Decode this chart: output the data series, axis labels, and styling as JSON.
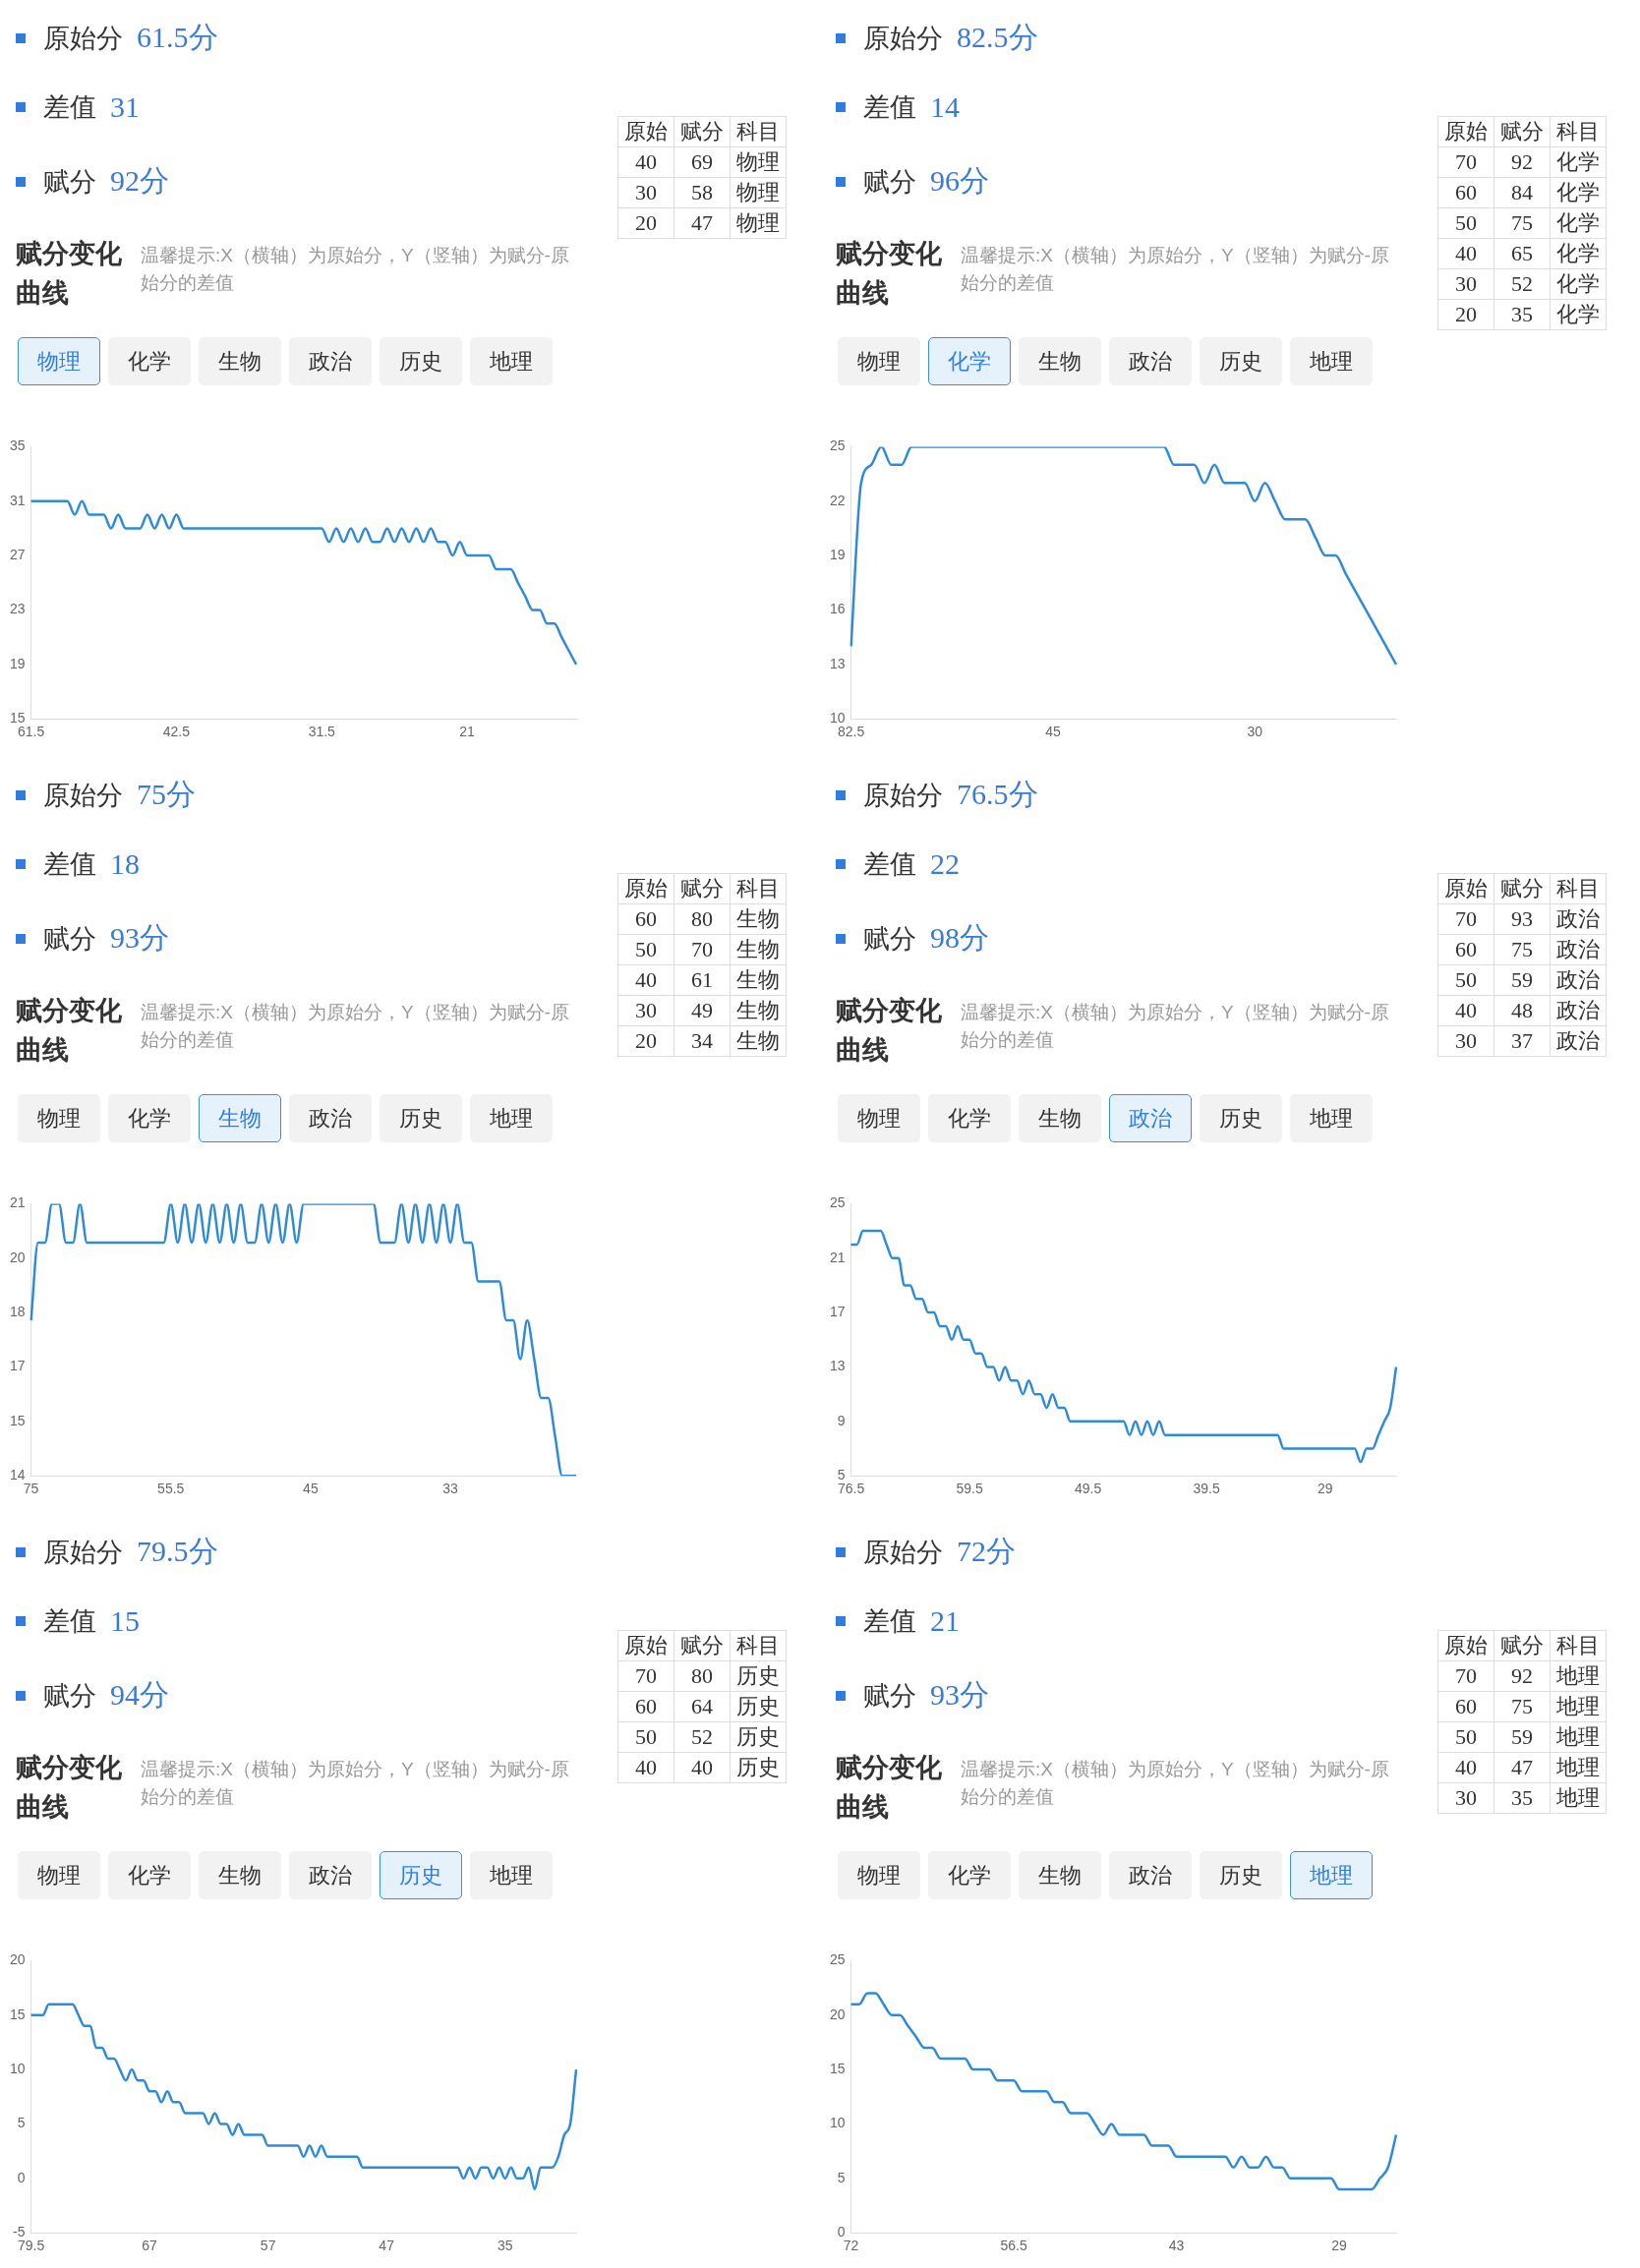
{
  "chart_data": [
    {
      "type": "line",
      "color": "#2f8ad8",
      "ylim": [
        15,
        35
      ],
      "yticks": [
        15,
        19,
        23,
        27,
        31,
        35
      ],
      "categories": [
        "61.5",
        null,
        null,
        null,
        null,
        null,
        null,
        null,
        null,
        null,
        null,
        null,
        null,
        null,
        null,
        null,
        null,
        null,
        null,
        null,
        "42.5",
        null,
        null,
        null,
        null,
        null,
        null,
        null,
        null,
        null,
        null,
        null,
        null,
        null,
        null,
        null,
        null,
        null,
        null,
        null,
        "31.5",
        null,
        null,
        null,
        null,
        null,
        null,
        null,
        null,
        null,
        null,
        null,
        null,
        null,
        null,
        null,
        null,
        null,
        null,
        null,
        "21",
        null,
        null,
        null,
        null,
        null,
        null,
        null,
        null,
        null,
        null,
        null,
        null,
        null,
        null,
        null
      ],
      "values": [
        31,
        31,
        31,
        31,
        31,
        31,
        30,
        31,
        30,
        30,
        30,
        29,
        30,
        29,
        29,
        29,
        30,
        29,
        30,
        29,
        30,
        29,
        29,
        29,
        29,
        29,
        29,
        29,
        29,
        29,
        29,
        29,
        29,
        29,
        29,
        29,
        29,
        29,
        29,
        29,
        29,
        28,
        29,
        28,
        29,
        28,
        29,
        28,
        28,
        29,
        28,
        29,
        28,
        29,
        28,
        29,
        28,
        28,
        27,
        28,
        27,
        27,
        27,
        27,
        26,
        26,
        26,
        25,
        24,
        23,
        23,
        22,
        22,
        21,
        20,
        19
      ],
      "annotations": [
        "原始分",
        "61.5分",
        "差值",
        "31",
        "赋分",
        "92分",
        "赋分变化曲线",
        "温馨提示:X（横轴）为原始分，Y（竖轴）为赋分-原始分的差值",
        "物理",
        "化学",
        "生物",
        "政治",
        "历史",
        "地理",
        "原始",
        "赋分",
        "科目",
        "40",
        "69",
        "物理",
        "30",
        "58",
        "物理",
        "20",
        "47",
        "物理"
      ]
    },
    {
      "type": "line",
      "color": "#2f8ad8",
      "ylim": [
        10,
        25
      ],
      "yticks": [
        10,
        13,
        16,
        19,
        22,
        25
      ],
      "categories": [
        "82.5",
        null,
        null,
        null,
        null,
        null,
        null,
        null,
        null,
        null,
        null,
        null,
        null,
        null,
        null,
        null,
        null,
        null,
        null,
        null,
        "45",
        null,
        null,
        null,
        null,
        null,
        null,
        null,
        null,
        null,
        null,
        null,
        null,
        null,
        null,
        null,
        null,
        null,
        null,
        null,
        "30",
        null,
        null,
        null,
        null,
        null,
        null,
        null,
        null,
        null,
        null,
        null,
        null,
        null,
        null
      ],
      "values": [
        14,
        23,
        24,
        25,
        24,
        24,
        25,
        25,
        25,
        25,
        25,
        25,
        25,
        25,
        25,
        25,
        25,
        25,
        25,
        25,
        25,
        25,
        25,
        25,
        25,
        25,
        25,
        25,
        25,
        25,
        25,
        25,
        24,
        24,
        24,
        23,
        24,
        23,
        23,
        23,
        22,
        23,
        22,
        21,
        21,
        21,
        20,
        19,
        19,
        18,
        17,
        16,
        15,
        14,
        13
      ],
      "annotations": [
        "原始分",
        "82.5分",
        "差值",
        "14",
        "赋分",
        "96分",
        "赋分变化曲线",
        "温馨提示:X（横轴）为原始分，Y（竖轴）为赋分-原始分的差值",
        "物理",
        "化学",
        "生物",
        "政治",
        "历史",
        "地理",
        "原始",
        "赋分",
        "科目",
        "70",
        "92",
        "化学",
        "60",
        "84",
        "化学",
        "50",
        "75",
        "化学",
        "40",
        "65",
        "化学",
        "30",
        "52",
        "化学",
        "20",
        "35",
        "化学"
      ]
    },
    {
      "type": "line",
      "color": "#2f8ad8",
      "ylim": [
        14,
        21
      ],
      "yticks": [
        14,
        {
          "value": 15.4,
          "label": "15"
        },
        {
          "value": 16.8,
          "label": "17"
        },
        {
          "value": 18.2,
          "label": "18"
        },
        {
          "value": 19.6,
          "label": "20"
        },
        21
      ],
      "categories": [
        "75",
        null,
        null,
        null,
        null,
        null,
        null,
        null,
        null,
        null,
        null,
        null,
        null,
        null,
        null,
        null,
        null,
        null,
        null,
        null,
        "55.5",
        null,
        null,
        null,
        null,
        null,
        null,
        null,
        null,
        null,
        null,
        null,
        null,
        null,
        null,
        null,
        null,
        null,
        null,
        null,
        "45",
        null,
        null,
        null,
        null,
        null,
        null,
        null,
        null,
        null,
        null,
        null,
        null,
        null,
        null,
        null,
        null,
        null,
        null,
        null,
        "33",
        null,
        null,
        null,
        null,
        null,
        null,
        null,
        null,
        null,
        null,
        null,
        null,
        null,
        null,
        null,
        null,
        null,
        null
      ],
      "values": [
        18,
        20,
        20,
        21,
        21,
        20,
        20,
        21,
        20,
        20,
        20,
        20,
        20,
        20,
        20,
        20,
        20,
        20,
        20,
        20,
        21,
        20,
        21,
        20,
        21,
        20,
        21,
        20,
        21,
        20,
        21,
        20,
        20,
        21,
        20,
        21,
        20,
        21,
        20,
        21,
        21,
        21,
        21,
        21,
        21,
        21,
        21,
        21,
        21,
        21,
        20,
        20,
        20,
        21,
        20,
        21,
        20,
        21,
        20,
        21,
        20,
        21,
        20,
        20,
        19,
        19,
        19,
        19,
        18,
        18,
        17,
        18,
        17,
        16,
        16,
        15,
        14,
        14,
        14
      ],
      "annotations": [
        "原始分",
        "75分",
        "差值",
        "18",
        "赋分",
        "93分",
        "赋分变化曲线",
        "温馨提示:X（横轴）为原始分，Y（竖轴）为赋分-原始分的差值",
        "物理",
        "化学",
        "生物",
        "政治",
        "历史",
        "地理",
        "原始",
        "赋分",
        "科目",
        "60",
        "80",
        "生物",
        "50",
        "70",
        "生物",
        "40",
        "61",
        "生物",
        "30",
        "49",
        "生物",
        "20",
        "34",
        "生物"
      ]
    },
    {
      "type": "line",
      "color": "#2f8ad8",
      "ylim": [
        5,
        25
      ],
      "yticks": [
        5,
        9,
        13,
        17,
        21,
        25
      ],
      "categories": [
        "76.5",
        null,
        null,
        null,
        null,
        null,
        null,
        null,
        null,
        null,
        null,
        null,
        null,
        null,
        null,
        null,
        null,
        null,
        null,
        null,
        "59.5",
        null,
        null,
        null,
        null,
        null,
        null,
        null,
        null,
        null,
        null,
        null,
        null,
        null,
        null,
        null,
        null,
        null,
        null,
        null,
        "49.5",
        null,
        null,
        null,
        null,
        null,
        null,
        null,
        null,
        null,
        null,
        null,
        null,
        null,
        null,
        null,
        null,
        null,
        null,
        null,
        "39.5",
        null,
        null,
        null,
        null,
        null,
        null,
        null,
        null,
        null,
        null,
        null,
        null,
        null,
        null,
        null,
        null,
        null,
        null,
        null,
        "29",
        null,
        null,
        null,
        null,
        null,
        null,
        null,
        null,
        null,
        null,
        null,
        null
      ],
      "values": [
        22,
        22,
        23,
        23,
        23,
        23,
        22,
        21,
        21,
        19,
        19,
        18,
        18,
        17,
        17,
        16,
        16,
        15,
        16,
        15,
        15,
        14,
        14,
        13,
        13,
        12,
        13,
        12,
        12,
        11,
        12,
        11,
        11,
        10,
        11,
        10,
        10,
        9,
        9,
        9,
        9,
        9,
        9,
        9,
        9,
        9,
        9,
        8,
        9,
        8,
        9,
        8,
        9,
        8,
        8,
        8,
        8,
        8,
        8,
        8,
        8,
        8,
        8,
        8,
        8,
        8,
        8,
        8,
        8,
        8,
        8,
        8,
        8,
        7,
        7,
        7,
        7,
        7,
        7,
        7,
        7,
        7,
        7,
        7,
        7,
        7,
        6,
        7,
        7,
        8,
        9,
        10,
        13
      ],
      "annotations": [
        "原始分",
        "76.5分",
        "差值",
        "22",
        "赋分",
        "98分",
        "赋分变化曲线",
        "温馨提示:X（横轴）为原始分，Y（竖轴）为赋分-原始分的差值",
        "物理",
        "化学",
        "生物",
        "政治",
        "历史",
        "地理",
        "原始",
        "赋分",
        "科目",
        "70",
        "93",
        "政治",
        "60",
        "75",
        "政治",
        "50",
        "59",
        "政治",
        "40",
        "48",
        "政治",
        "30",
        "37",
        "政治"
      ]
    },
    {
      "type": "line",
      "color": "#2f8ad8",
      "ylim": [
        -5,
        20
      ],
      "yticks": [
        -5,
        0,
        5,
        10,
        15,
        20
      ],
      "categories": [
        "79.5",
        null,
        null,
        null,
        null,
        null,
        null,
        null,
        null,
        null,
        null,
        null,
        null,
        null,
        null,
        null,
        null,
        null,
        null,
        null,
        "67",
        null,
        null,
        null,
        null,
        null,
        null,
        null,
        null,
        null,
        null,
        null,
        null,
        null,
        null,
        null,
        null,
        null,
        null,
        null,
        "57",
        null,
        null,
        null,
        null,
        null,
        null,
        null,
        null,
        null,
        null,
        null,
        null,
        null,
        null,
        null,
        null,
        null,
        null,
        null,
        "47",
        null,
        null,
        null,
        null,
        null,
        null,
        null,
        null,
        null,
        null,
        null,
        null,
        null,
        null,
        null,
        null,
        null,
        null,
        null,
        "35",
        null,
        null,
        null,
        null,
        null,
        null,
        null,
        null,
        null,
        null,
        null,
        null
      ],
      "values": [
        15,
        15,
        15,
        16,
        16,
        16,
        16,
        16,
        15,
        14,
        14,
        12,
        12,
        11,
        11,
        10,
        9,
        10,
        9,
        9,
        8,
        8,
        7,
        8,
        7,
        7,
        6,
        6,
        6,
        6,
        5,
        6,
        5,
        5,
        4,
        5,
        4,
        4,
        4,
        4,
        3,
        3,
        3,
        3,
        3,
        3,
        2,
        3,
        2,
        3,
        2,
        2,
        2,
        2,
        2,
        2,
        1,
        1,
        1,
        1,
        1,
        1,
        1,
        1,
        1,
        1,
        1,
        1,
        1,
        1,
        1,
        1,
        1,
        0,
        1,
        0,
        1,
        1,
        0,
        1,
        0,
        1,
        0,
        0,
        1,
        -1,
        1,
        1,
        1,
        2,
        4,
        5,
        10
      ],
      "annotations": [
        "原始分",
        "79.5分",
        "差值",
        "15",
        "赋分",
        "94分",
        "赋分变化曲线",
        "温馨提示:X（横轴）为原始分，Y（竖轴）为赋分-原始分的差值",
        "物理",
        "化学",
        "生物",
        "政治",
        "历史",
        "地理",
        "原始",
        "赋分",
        "科目",
        "70",
        "80",
        "历史",
        "60",
        "64",
        "历史",
        "50",
        "52",
        "历史",
        "40",
        "40",
        "历史"
      ]
    },
    {
      "type": "line",
      "color": "#2f8ad8",
      "ylim": [
        0,
        25
      ],
      "yticks": [
        0,
        5,
        10,
        15,
        20,
        25
      ],
      "categories": [
        "72",
        null,
        null,
        null,
        null,
        null,
        null,
        null,
        null,
        null,
        null,
        null,
        null,
        null,
        null,
        null,
        null,
        null,
        null,
        null,
        "56.5",
        null,
        null,
        null,
        null,
        null,
        null,
        null,
        null,
        null,
        null,
        null,
        null,
        null,
        null,
        null,
        null,
        null,
        null,
        null,
        "43",
        null,
        null,
        null,
        null,
        null,
        null,
        null,
        null,
        null,
        null,
        null,
        null,
        null,
        null,
        null,
        null,
        null,
        null,
        null,
        "29",
        null,
        null,
        null,
        null,
        null,
        null,
        null
      ],
      "values": [
        21,
        21,
        22,
        22,
        21,
        20,
        20,
        19,
        18,
        17,
        17,
        16,
        16,
        16,
        16,
        15,
        15,
        15,
        14,
        14,
        14,
        13,
        13,
        13,
        13,
        12,
        12,
        11,
        11,
        11,
        10,
        9,
        10,
        9,
        9,
        9,
        9,
        8,
        8,
        8,
        7,
        7,
        7,
        7,
        7,
        7,
        7,
        6,
        7,
        6,
        6,
        7,
        6,
        6,
        5,
        5,
        5,
        5,
        5,
        5,
        4,
        4,
        4,
        4,
        4,
        5,
        6,
        9
      ],
      "annotations": [
        "原始分",
        "72分",
        "差值",
        "21",
        "赋分",
        "93分",
        "赋分变化曲线",
        "温馨提示:X（横轴）为原始分，Y（竖轴）为赋分-原始分的差值",
        "物理",
        "化学",
        "生物",
        "政治",
        "历史",
        "地理",
        "原始",
        "赋分",
        "科目",
        "70",
        "92",
        "地理",
        "60",
        "75",
        "地理",
        "50",
        "59",
        "地理",
        "40",
        "47",
        "地理",
        "30",
        "35",
        "地理"
      ]
    }
  ]
}
